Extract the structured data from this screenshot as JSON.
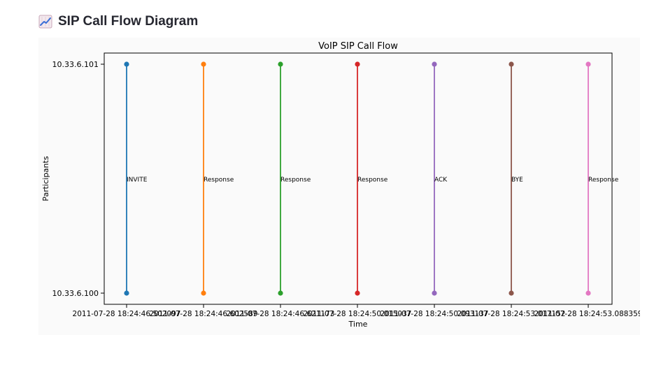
{
  "header": {
    "title": "SIP Call Flow Diagram",
    "icon": "chart-increasing-icon"
  },
  "chart_data": {
    "type": "line",
    "title": "VoIP SIP Call Flow",
    "xlabel": "Time",
    "ylabel": "Participants",
    "categories": [
      "10.33.6.100",
      "10.33.6.101"
    ],
    "grid": false,
    "series": [
      {
        "x": "2011-07-28 18:24:46.502097",
        "y": [
          "10.33.6.100",
          "10.33.6.101"
        ],
        "label": "INVITE",
        "color": "#1f77b4"
      },
      {
        "x": "2011-07-28 18:24:46.602589",
        "y": [
          "10.33.6.100",
          "10.33.6.101"
        ],
        "label": "Response",
        "color": "#ff7f0e"
      },
      {
        "x": "2011-07-28 18:24:46.621173",
        "y": [
          "10.33.6.100",
          "10.33.6.101"
        ],
        "label": "Response",
        "color": "#2ca02c"
      },
      {
        "x": "2011-07-28 18:24:50.015037",
        "y": [
          "10.33.6.100",
          "10.33.6.101"
        ],
        "label": "Response",
        "color": "#d62728"
      },
      {
        "x": "2011-07-28 18:24:50.093137",
        "y": [
          "10.33.6.100",
          "10.33.6.101"
        ],
        "label": "ACK",
        "color": "#9467bd"
      },
      {
        "x": "2011-07-28 18:24:53.017152",
        "y": [
          "10.33.6.100",
          "10.33.6.101"
        ],
        "label": "BYE",
        "color": "#8c564b"
      },
      {
        "x": "2011-07-28 18:24:53.088359",
        "y": [
          "10.33.6.100",
          "10.33.6.101"
        ],
        "label": "Response",
        "color": "#e377c2"
      }
    ]
  }
}
